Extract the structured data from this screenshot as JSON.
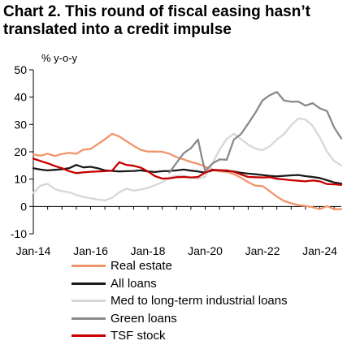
{
  "title_line1": "Chart 2. This round of fiscal easing hasn’t",
  "title_line2": "translated into a credit impulse",
  "chart_data": {
    "type": "line",
    "ylabel": "% y-o-y",
    "ylim": [
      -10,
      50
    ],
    "y_ticks": [
      -10,
      0,
      10,
      20,
      30,
      40,
      50
    ],
    "xlim": [
      2014.0,
      2024.75
    ],
    "x_ticks": [
      {
        "value": 2014,
        "label": "Jan-14"
      },
      {
        "value": 2016,
        "label": "Jan-16"
      },
      {
        "value": 2018,
        "label": "Jan-18"
      },
      {
        "value": 2020,
        "label": "Jan-20"
      },
      {
        "value": 2022,
        "label": "Jan-22"
      },
      {
        "value": 2024,
        "label": "Jan-24"
      }
    ],
    "grid": false,
    "legend_position": "bottom",
    "series": [
      {
        "name": "Real estate",
        "color": "#F0956A",
        "points": [
          [
            2014.0,
            19
          ],
          [
            2014.25,
            18.6
          ],
          [
            2014.5,
            19.3
          ],
          [
            2014.75,
            18.5
          ],
          [
            2015.0,
            19.2
          ],
          [
            2015.25,
            19.6
          ],
          [
            2015.5,
            19.3
          ],
          [
            2015.75,
            20.8
          ],
          [
            2016.0,
            21
          ],
          [
            2016.25,
            22.8
          ],
          [
            2016.5,
            24.6
          ],
          [
            2016.75,
            26.6
          ],
          [
            2017.0,
            25.6
          ],
          [
            2017.25,
            23.9
          ],
          [
            2017.5,
            22.2
          ],
          [
            2017.75,
            20.7
          ],
          [
            2018.0,
            20.1
          ],
          [
            2018.25,
            20.1
          ],
          [
            2018.5,
            20
          ],
          [
            2018.75,
            19.3
          ],
          [
            2019.0,
            18
          ],
          [
            2019.25,
            17.2
          ],
          [
            2019.5,
            16.3
          ],
          [
            2019.75,
            15.6
          ],
          [
            2020.0,
            14.5
          ],
          [
            2020.25,
            13.5
          ],
          [
            2020.5,
            12.8
          ],
          [
            2020.75,
            12.7
          ],
          [
            2021.0,
            11.8
          ],
          [
            2021.25,
            10.5
          ],
          [
            2021.5,
            8.9
          ],
          [
            2021.75,
            7.6
          ],
          [
            2022.0,
            7.5
          ],
          [
            2022.25,
            5.6
          ],
          [
            2022.5,
            3.6
          ],
          [
            2022.75,
            2
          ],
          [
            2023.0,
            1.2
          ],
          [
            2023.25,
            0.5
          ],
          [
            2023.5,
            0.2
          ],
          [
            2023.75,
            -0.3
          ],
          [
            2024.0,
            -1
          ],
          [
            2024.25,
            0.1
          ],
          [
            2024.5,
            -1
          ],
          [
            2024.75,
            -1
          ]
        ]
      },
      {
        "name": "All loans",
        "color": "#1A1A1A",
        "points": [
          [
            2014.0,
            14
          ],
          [
            2014.25,
            13.5
          ],
          [
            2014.5,
            13.2
          ],
          [
            2014.75,
            13.4
          ],
          [
            2015.0,
            13.6
          ],
          [
            2015.25,
            14
          ],
          [
            2015.5,
            15.2
          ],
          [
            2015.75,
            14.3
          ],
          [
            2016.0,
            14.5
          ],
          [
            2016.25,
            14
          ],
          [
            2016.5,
            13.2
          ],
          [
            2016.75,
            13
          ],
          [
            2017.0,
            12.8
          ],
          [
            2017.25,
            12.9
          ],
          [
            2017.5,
            13
          ],
          [
            2017.75,
            13.2
          ],
          [
            2018.0,
            12.8
          ],
          [
            2018.25,
            12.6
          ],
          [
            2018.5,
            12.9
          ],
          [
            2018.75,
            13
          ],
          [
            2019.0,
            13.2
          ],
          [
            2019.25,
            13.5
          ],
          [
            2019.5,
            13.1
          ],
          [
            2019.75,
            12.8
          ],
          [
            2020.0,
            12.4
          ],
          [
            2020.25,
            13.2
          ],
          [
            2020.5,
            13.3
          ],
          [
            2020.75,
            13
          ],
          [
            2021.0,
            12.8
          ],
          [
            2021.25,
            12.3
          ],
          [
            2021.5,
            12
          ],
          [
            2021.75,
            11.8
          ],
          [
            2022.0,
            11.5
          ],
          [
            2022.25,
            11.2
          ],
          [
            2022.5,
            11
          ],
          [
            2022.75,
            11.2
          ],
          [
            2023.0,
            11.4
          ],
          [
            2023.25,
            11.5
          ],
          [
            2023.5,
            11.1
          ],
          [
            2023.75,
            10.8
          ],
          [
            2024.0,
            10.4
          ],
          [
            2024.25,
            9.6
          ],
          [
            2024.5,
            8.8
          ],
          [
            2024.75,
            8.4
          ]
        ]
      },
      {
        "name": "Med to long-term industrial loans",
        "color": "#D7D7D7",
        "points": [
          [
            2014.0,
            5
          ],
          [
            2014.25,
            7.6
          ],
          [
            2014.5,
            8.3
          ],
          [
            2014.75,
            6.4
          ],
          [
            2015.0,
            5.6
          ],
          [
            2015.25,
            5.2
          ],
          [
            2015.5,
            4.2
          ],
          [
            2015.75,
            3.5
          ],
          [
            2016.0,
            3
          ],
          [
            2016.25,
            2.5
          ],
          [
            2016.5,
            2.2
          ],
          [
            2016.75,
            3.2
          ],
          [
            2017.0,
            5.2
          ],
          [
            2017.25,
            6.5
          ],
          [
            2017.5,
            5.8
          ],
          [
            2017.75,
            6.2
          ],
          [
            2018.0,
            6.8
          ],
          [
            2018.25,
            7.8
          ],
          [
            2018.5,
            8.9
          ],
          [
            2018.75,
            10.6
          ],
          [
            2019.0,
            11.3
          ],
          [
            2019.25,
            11.3
          ],
          [
            2019.5,
            10.6
          ],
          [
            2019.75,
            10.1
          ],
          [
            2020.0,
            10.9
          ],
          [
            2020.25,
            15.6
          ],
          [
            2020.5,
            20.8
          ],
          [
            2020.75,
            24.7
          ],
          [
            2021.0,
            26.6
          ],
          [
            2021.25,
            24.6
          ],
          [
            2021.5,
            22.6
          ],
          [
            2021.75,
            21.2
          ],
          [
            2022.0,
            20.6
          ],
          [
            2022.25,
            22
          ],
          [
            2022.5,
            24.5
          ],
          [
            2022.75,
            26.5
          ],
          [
            2023.0,
            29.7
          ],
          [
            2023.25,
            32.2
          ],
          [
            2023.5,
            31.8
          ],
          [
            2023.75,
            29.5
          ],
          [
            2024.0,
            25.2
          ],
          [
            2024.25,
            20.1
          ],
          [
            2024.5,
            16.6
          ],
          [
            2024.75,
            15
          ]
        ]
      },
      {
        "name": "Green loans",
        "color": "#8A8A8A",
        "points": [
          [
            2018.75,
            12.4
          ],
          [
            2019.0,
            16
          ],
          [
            2019.25,
            19.5
          ],
          [
            2019.5,
            21.3
          ],
          [
            2019.75,
            24.5
          ],
          [
            2019.9,
            17
          ],
          [
            2020.0,
            13
          ],
          [
            2020.25,
            15.7
          ],
          [
            2020.5,
            17.2
          ],
          [
            2020.75,
            17.1
          ],
          [
            2021.0,
            24.5
          ],
          [
            2021.25,
            26.5
          ],
          [
            2021.5,
            30.3
          ],
          [
            2021.75,
            34.3
          ],
          [
            2022.0,
            38.8
          ],
          [
            2022.25,
            40.7
          ],
          [
            2022.5,
            41.9
          ],
          [
            2022.75,
            38.8
          ],
          [
            2023.0,
            38.3
          ],
          [
            2023.25,
            38.4
          ],
          [
            2023.5,
            36.9
          ],
          [
            2023.75,
            37.8
          ],
          [
            2024.0,
            35.9
          ],
          [
            2024.25,
            34.9
          ],
          [
            2024.5,
            28.9
          ],
          [
            2024.75,
            24.9
          ]
        ]
      },
      {
        "name": "TSF stock",
        "color": "#C80000",
        "points": [
          [
            2014.0,
            17.5
          ],
          [
            2014.25,
            16.6
          ],
          [
            2014.5,
            15.8
          ],
          [
            2014.75,
            14.8
          ],
          [
            2015.0,
            14
          ],
          [
            2015.25,
            12.9
          ],
          [
            2015.5,
            12.2
          ],
          [
            2015.75,
            12.5
          ],
          [
            2016.0,
            12.7
          ],
          [
            2016.25,
            12.8
          ],
          [
            2016.5,
            12.9
          ],
          [
            2016.75,
            13.1
          ],
          [
            2017.0,
            16.2
          ],
          [
            2017.25,
            15.2
          ],
          [
            2017.5,
            14.9
          ],
          [
            2017.75,
            14.2
          ],
          [
            2018.0,
            12.8
          ],
          [
            2018.25,
            11.1
          ],
          [
            2018.5,
            10.2
          ],
          [
            2018.75,
            10.3
          ],
          [
            2019.0,
            10.7
          ],
          [
            2019.25,
            10.8
          ],
          [
            2019.5,
            10.6
          ],
          [
            2019.75,
            10.8
          ],
          [
            2020.0,
            12.4
          ],
          [
            2020.25,
            13.4
          ],
          [
            2020.5,
            13.3
          ],
          [
            2020.75,
            13.2
          ],
          [
            2021.0,
            12.7
          ],
          [
            2021.25,
            11.7
          ],
          [
            2021.5,
            10.8
          ],
          [
            2021.75,
            10.7
          ],
          [
            2022.0,
            10.6
          ],
          [
            2022.25,
            10.7
          ],
          [
            2022.5,
            10.1
          ],
          [
            2022.75,
            9.9
          ],
          [
            2023.0,
            9.6
          ],
          [
            2023.25,
            9.4
          ],
          [
            2023.5,
            9.2
          ],
          [
            2023.75,
            9.5
          ],
          [
            2024.0,
            9.2
          ],
          [
            2024.25,
            8.2
          ],
          [
            2024.5,
            8.1
          ],
          [
            2024.75,
            7.9
          ]
        ]
      }
    ]
  }
}
